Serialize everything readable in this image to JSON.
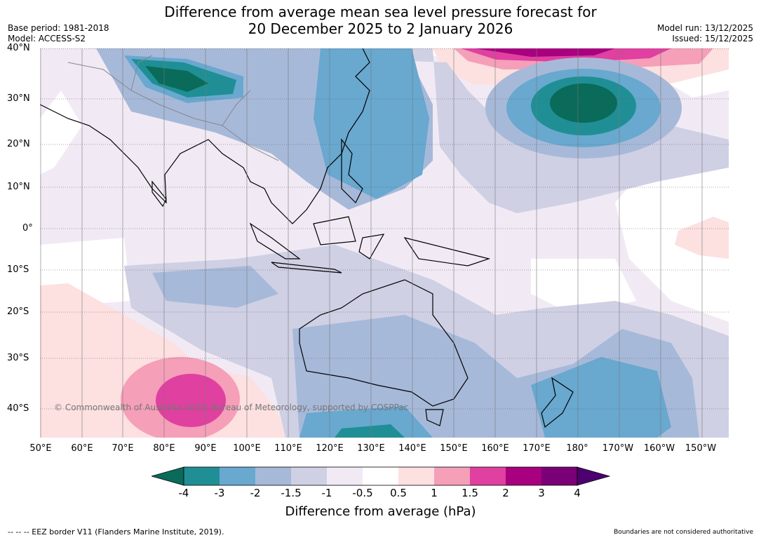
{
  "title": {
    "line1": "Difference from average mean sea level pressure forecast for",
    "line2": "20 December 2025 to 2 January 2026"
  },
  "meta": {
    "base_period": "Base period: 1981-2018",
    "model": "Model: ACCESS-S2",
    "model_run": "Model run: 13/12/2025",
    "issued": "Issued: 15/12/2025"
  },
  "latitude_labels": [
    "40°N",
    "30°N",
    "20°N",
    "10°N",
    "0°",
    "10°S",
    "20°S",
    "30°S",
    "40°S"
  ],
  "longitude_labels": [
    "50°E",
    "60°E",
    "70°E",
    "80°E",
    "90°E",
    "100°E",
    "110°E",
    "120°E",
    "130°E",
    "140°E",
    "150°E",
    "160°E",
    "170°E",
    "180°",
    "170°W",
    "160°W",
    "150°W"
  ],
  "colorbar": {
    "ticks": [
      "-4",
      "-3",
      "-2",
      "-1.5",
      "-1",
      "-0.5",
      "0.5",
      "1",
      "1.5",
      "2",
      "3",
      "4"
    ],
    "colors": [
      "#0a6b5a",
      "#1f8f95",
      "#69a8cf",
      "#a7b9d9",
      "#cfd0e4",
      "#f1eaf4",
      "#ffffff",
      "#fde0e0",
      "#f59fb9",
      "#e040a0",
      "#a8007e",
      "#7a0078",
      "#4e0070"
    ],
    "label": "Difference from average (hPa)"
  },
  "copyright": "© Commonwealth of Australia 2025, Bureau of Meteorology, supported by COSPPac",
  "footer": {
    "eez": "-- -- -- EEZ border V11 (Flanders Marine Institute, 2019).",
    "boundaries": "Boundaries are not considered authoritative"
  }
}
